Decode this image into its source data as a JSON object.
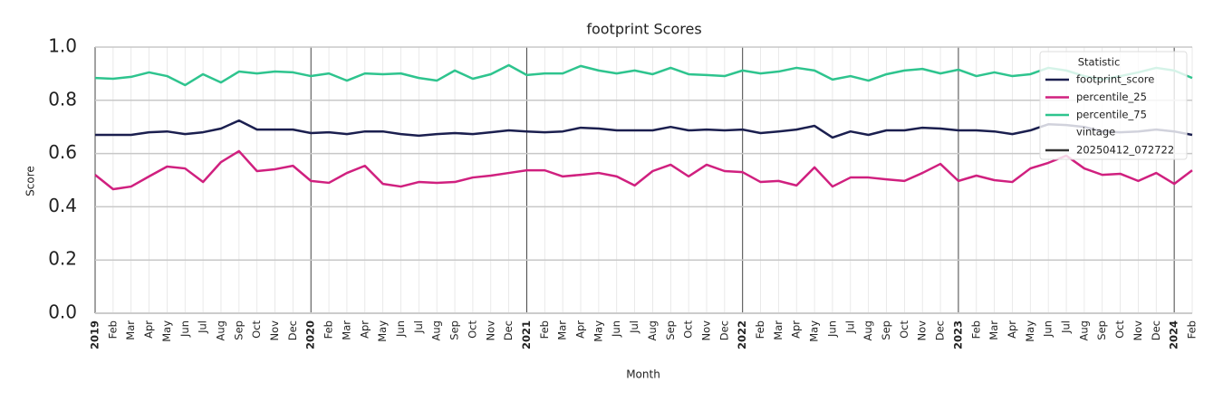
{
  "chart_data": {
    "type": "line",
    "title": "footprint Scores",
    "xlabel": "Month",
    "ylabel": "Score",
    "categories": [
      "2019",
      "Feb",
      "Mar",
      "Apr",
      "May",
      "Jun",
      "Jul",
      "Aug",
      "Sep",
      "Oct",
      "Nov",
      "Dec",
      "2020",
      "Feb",
      "Mar",
      "Apr",
      "May",
      "Jun",
      "Jul",
      "Aug",
      "Sep",
      "Oct",
      "Nov",
      "Dec",
      "2021",
      "Feb",
      "Mar",
      "Apr",
      "May",
      "Jun",
      "Jul",
      "Aug",
      "Sep",
      "Oct",
      "Nov",
      "Dec",
      "2022",
      "Feb",
      "Mar",
      "Apr",
      "May",
      "Jun",
      "Jul",
      "Aug",
      "Sep",
      "Oct",
      "Nov",
      "Dec",
      "2023",
      "Feb",
      "Mar",
      "Apr",
      "May",
      "Jun",
      "Jul",
      "Aug",
      "Sep",
      "Oct",
      "Nov",
      "Dec",
      "2024",
      "Feb"
    ],
    "series": [
      {
        "name": "footprint_score",
        "color": "#1b1f4f",
        "values": [
          0.67,
          0.67,
          0.67,
          0.68,
          0.683,
          0.673,
          0.68,
          0.694,
          0.724,
          0.69,
          0.69,
          0.69,
          0.677,
          0.68,
          0.673,
          0.683,
          0.683,
          0.673,
          0.667,
          0.673,
          0.677,
          0.673,
          0.68,
          0.687,
          0.683,
          0.68,
          0.683,
          0.697,
          0.694,
          0.687,
          0.687,
          0.687,
          0.7,
          0.687,
          0.69,
          0.687,
          0.69,
          0.677,
          0.683,
          0.69,
          0.704,
          0.66,
          0.683,
          0.67,
          0.687,
          0.687,
          0.697,
          0.694,
          0.687,
          0.687,
          0.683,
          0.673,
          0.687,
          0.71,
          0.707,
          0.7,
          0.683,
          0.68,
          0.683,
          0.69,
          0.683,
          0.67
        ]
      },
      {
        "name": "percentile_25",
        "color": "#d0207f",
        "values": [
          0.52,
          0.466,
          0.476,
          0.514,
          0.551,
          0.544,
          0.493,
          0.568,
          0.609,
          0.534,
          0.541,
          0.554,
          0.497,
          0.49,
          0.527,
          0.554,
          0.486,
          0.476,
          0.493,
          0.49,
          0.493,
          0.51,
          0.517,
          0.527,
          0.537,
          0.537,
          0.514,
          0.52,
          0.527,
          0.514,
          0.48,
          0.534,
          0.558,
          0.514,
          0.558,
          0.534,
          0.53,
          0.493,
          0.497,
          0.48,
          0.548,
          0.476,
          0.51,
          0.51,
          0.503,
          0.497,
          0.527,
          0.561,
          0.497,
          0.517,
          0.5,
          0.493,
          0.544,
          0.565,
          0.592,
          0.544,
          0.52,
          0.524,
          0.497,
          0.527,
          0.486,
          0.537
        ]
      },
      {
        "name": "percentile_75",
        "color": "#2ec48e",
        "values": [
          0.884,
          0.881,
          0.888,
          0.905,
          0.891,
          0.857,
          0.898,
          0.867,
          0.908,
          0.901,
          0.908,
          0.905,
          0.891,
          0.901,
          0.874,
          0.901,
          0.898,
          0.901,
          0.884,
          0.874,
          0.912,
          0.881,
          0.898,
          0.932,
          0.895,
          0.901,
          0.901,
          0.929,
          0.912,
          0.901,
          0.912,
          0.898,
          0.922,
          0.898,
          0.895,
          0.891,
          0.912,
          0.901,
          0.908,
          0.922,
          0.912,
          0.878,
          0.891,
          0.874,
          0.898,
          0.912,
          0.918,
          0.901,
          0.915,
          0.891,
          0.905,
          0.891,
          0.898,
          0.922,
          0.912,
          0.891,
          0.878,
          0.891,
          0.905,
          0.922,
          0.912,
          0.884
        ]
      }
    ],
    "legend": {
      "title": "Statistic",
      "subtitle": "vintage",
      "extra": {
        "name": "20250412_072722",
        "color": "#333333"
      },
      "position": "upper right"
    },
    "ylim": [
      0,
      1
    ],
    "yticks": [
      {
        "value": 0,
        "label": "0.0"
      },
      0.2,
      0.4,
      0.6,
      0.8,
      {
        "value": 1,
        "label": "1.0"
      }
    ],
    "grid": true
  }
}
